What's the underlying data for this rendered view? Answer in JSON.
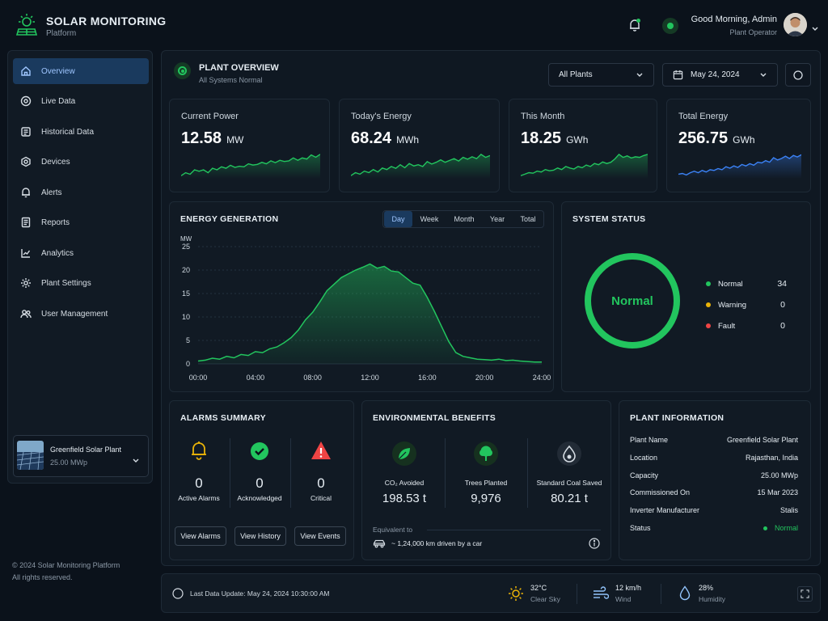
{
  "brand": {
    "title": "SOLAR MONITORING",
    "subtitle": "Platform"
  },
  "user": {
    "greeting": "Good Morning, Admin",
    "role": "Plant Operator"
  },
  "sidebar": {
    "items": [
      {
        "label": "Overview",
        "icon": "home-icon"
      },
      {
        "label": "Live Data",
        "icon": "live-icon"
      },
      {
        "label": "Historical Data",
        "icon": "history-icon"
      },
      {
        "label": "Devices",
        "icon": "device-icon"
      },
      {
        "label": "Alerts",
        "icon": "bell-icon"
      },
      {
        "label": "Reports",
        "icon": "report-icon"
      },
      {
        "label": "Analytics",
        "icon": "analytics-icon"
      },
      {
        "label": "Plant Settings",
        "icon": "gear-icon"
      },
      {
        "label": "User Management",
        "icon": "users-icon"
      }
    ],
    "plant": {
      "name": "Greenfield Solar Plant",
      "capacity": "25.00 MWp"
    }
  },
  "footer": {
    "copyright": "© 2024 Solar Monitoring Platform",
    "rights": "All rights reserved."
  },
  "header": {
    "title": "PLANT OVERVIEW",
    "status": "All Systems Normal",
    "plant_select": "All Plants",
    "date": "May 24, 2024"
  },
  "kpis": [
    {
      "label": "Current Power",
      "value": "12.58",
      "unit": "MW",
      "trend": [
        5,
        6,
        5.5,
        7,
        6.5,
        7,
        6,
        7.5,
        7,
        8,
        7.5,
        8.5,
        7.8,
        8.2,
        8,
        9,
        8.6,
        8.8,
        9.5,
        9,
        10,
        9.4,
        10.2,
        9.8,
        10,
        11,
        10.2,
        11,
        10.6,
        12,
        11.2,
        12.2
      ]
    },
    {
      "label": "Today's Energy",
      "value": "68.24",
      "unit": "MWh",
      "trend": [
        5,
        6,
        5.5,
        6.5,
        6,
        7,
        6.2,
        7.5,
        7,
        8,
        7.4,
        8.6,
        7.6,
        9,
        8.2,
        8.6,
        8,
        9.6,
        8.8,
        9.4,
        10.2,
        9.4,
        10,
        10.6,
        9.8,
        11,
        10.4,
        11.2,
        10.6,
        12,
        11,
        11.6
      ]
    },
    {
      "label": "This Month",
      "value": "18.25",
      "unit": "GWh",
      "trend": [
        5,
        5.5,
        6,
        5.8,
        6.5,
        6.2,
        7,
        6.6,
        6.8,
        7.5,
        7,
        8,
        7.5,
        7.2,
        8,
        7.6,
        8.5,
        8,
        9,
        8.6,
        9.5,
        9,
        9.4,
        10.5,
        12,
        11,
        11.5,
        10.8,
        11.2,
        11,
        11.6,
        12
      ]
    },
    {
      "label": "Total Energy",
      "value": "256.75",
      "unit": "GWh",
      "trend": [
        6,
        6.2,
        5.8,
        6.4,
        6.8,
        6.4,
        7,
        6.6,
        7.2,
        7,
        7.5,
        7.2,
        8,
        7.6,
        8.2,
        7.8,
        8.6,
        8.2,
        8.8,
        8.4,
        9.2,
        9,
        9.6,
        9.2,
        10.4,
        9.8,
        10.2,
        10.8,
        10.2,
        11,
        10.6,
        11.2
      ]
    }
  ],
  "energy": {
    "title": "ENERGY GENERATION",
    "tabs": [
      "Day",
      "Week",
      "Month",
      "Year",
      "Total"
    ],
    "active_tab": "Day"
  },
  "chart_data": {
    "type": "area",
    "title": "ENERGY GENERATION",
    "ylabel": "MW",
    "ylim": [
      0,
      25
    ],
    "yticks": [
      0,
      5,
      10,
      15,
      20,
      25
    ],
    "xticks": [
      "00:00",
      "04:00",
      "08:00",
      "12:00",
      "16:00",
      "20:00",
      "24:00"
    ],
    "x": [
      0,
      0.5,
      1,
      1.5,
      2,
      2.5,
      3,
      3.5,
      4,
      4.5,
      5,
      5.5,
      6,
      6.5,
      7,
      7.5,
      8,
      8.5,
      9,
      9.5,
      10,
      10.5,
      11,
      11.5,
      12,
      12.5,
      13,
      13.5,
      14,
      14.5,
      15,
      15.5,
      16,
      16.5,
      17,
      17.5,
      18,
      18.5,
      19,
      19.5,
      20,
      20.5,
      21,
      21.5,
      22,
      22.5,
      23,
      23.5,
      24
    ],
    "values": [
      0.6,
      0.8,
      1.2,
      1.0,
      1.6,
      1.3,
      2.0,
      1.8,
      2.6,
      2.4,
      3.2,
      3.6,
      4.5,
      5.6,
      7.2,
      9.4,
      11.0,
      13.2,
      15.6,
      17.0,
      18.4,
      19.2,
      20.0,
      20.6,
      21.3,
      20.4,
      20.8,
      19.8,
      19.6,
      18.4,
      17.2,
      16.8,
      14.2,
      11.2,
      8.0,
      4.8,
      2.4,
      1.6,
      1.3,
      1.0,
      0.9,
      0.8,
      1.0,
      0.7,
      0.8,
      0.6,
      0.5,
      0.4,
      0.4
    ]
  },
  "system_status": {
    "title": "SYSTEM STATUS",
    "center": "Normal",
    "items": [
      {
        "label": "Normal",
        "count": "34",
        "color": "#22c55e"
      },
      {
        "label": "Warning",
        "count": "0",
        "color": "#eab308"
      },
      {
        "label": "Fault",
        "count": "0",
        "color": "#ef4444"
      }
    ]
  },
  "alarms": {
    "title": "ALARMS SUMMARY",
    "items": [
      {
        "count": "0",
        "label": "Active Alarms",
        "icon": "bell-icon",
        "color": "#eab308"
      },
      {
        "count": "0",
        "label": "Acknowledged",
        "icon": "check-icon",
        "color": "#22c55e"
      },
      {
        "count": "0",
        "label": "Critical",
        "icon": "warning-icon",
        "color": "#ef4444"
      }
    ],
    "buttons": [
      "View Alarms",
      "View History",
      "View Events"
    ]
  },
  "environment": {
    "title": "ENVIRONMENTAL BENEFITS",
    "items": [
      {
        "label": "CO₂ Avoided",
        "value": "198.53 t",
        "icon": "leaf-icon"
      },
      {
        "label": "Trees Planted",
        "value": "9,976",
        "icon": "tree-icon"
      },
      {
        "label": "Standard Coal Saved",
        "value": "80.21 t",
        "icon": "coal-icon"
      }
    ],
    "equivalent_label": "Equivalent to",
    "equivalent_text": "~ 1,24,000 km driven by a car"
  },
  "plant_info": {
    "title": "PLANT INFORMATION",
    "rows": [
      {
        "key": "Plant Name",
        "value": "Greenfield Solar Plant"
      },
      {
        "key": "Location",
        "value": "Rajasthan, India"
      },
      {
        "key": "Capacity",
        "value": "25.00 MWp"
      },
      {
        "key": "Commissioned On",
        "value": "15 Mar 2023"
      },
      {
        "key": "Inverter Manufacturer",
        "value": "Stalis"
      },
      {
        "key": "Status",
        "value": "Normal"
      }
    ]
  },
  "status_bar": {
    "last_update": "Last Data Update: May 24, 2024 10:30:00 AM",
    "temp": "32°C",
    "temp_desc": "Clear Sky",
    "wind": "12 km/h",
    "wind_label": "Wind",
    "humidity": "28%",
    "humidity_label": "Humidity"
  },
  "colors": {
    "accent": "#22c55e",
    "blue": "#3b82f6",
    "bg": "#0b121b",
    "panel": "#111a24"
  }
}
